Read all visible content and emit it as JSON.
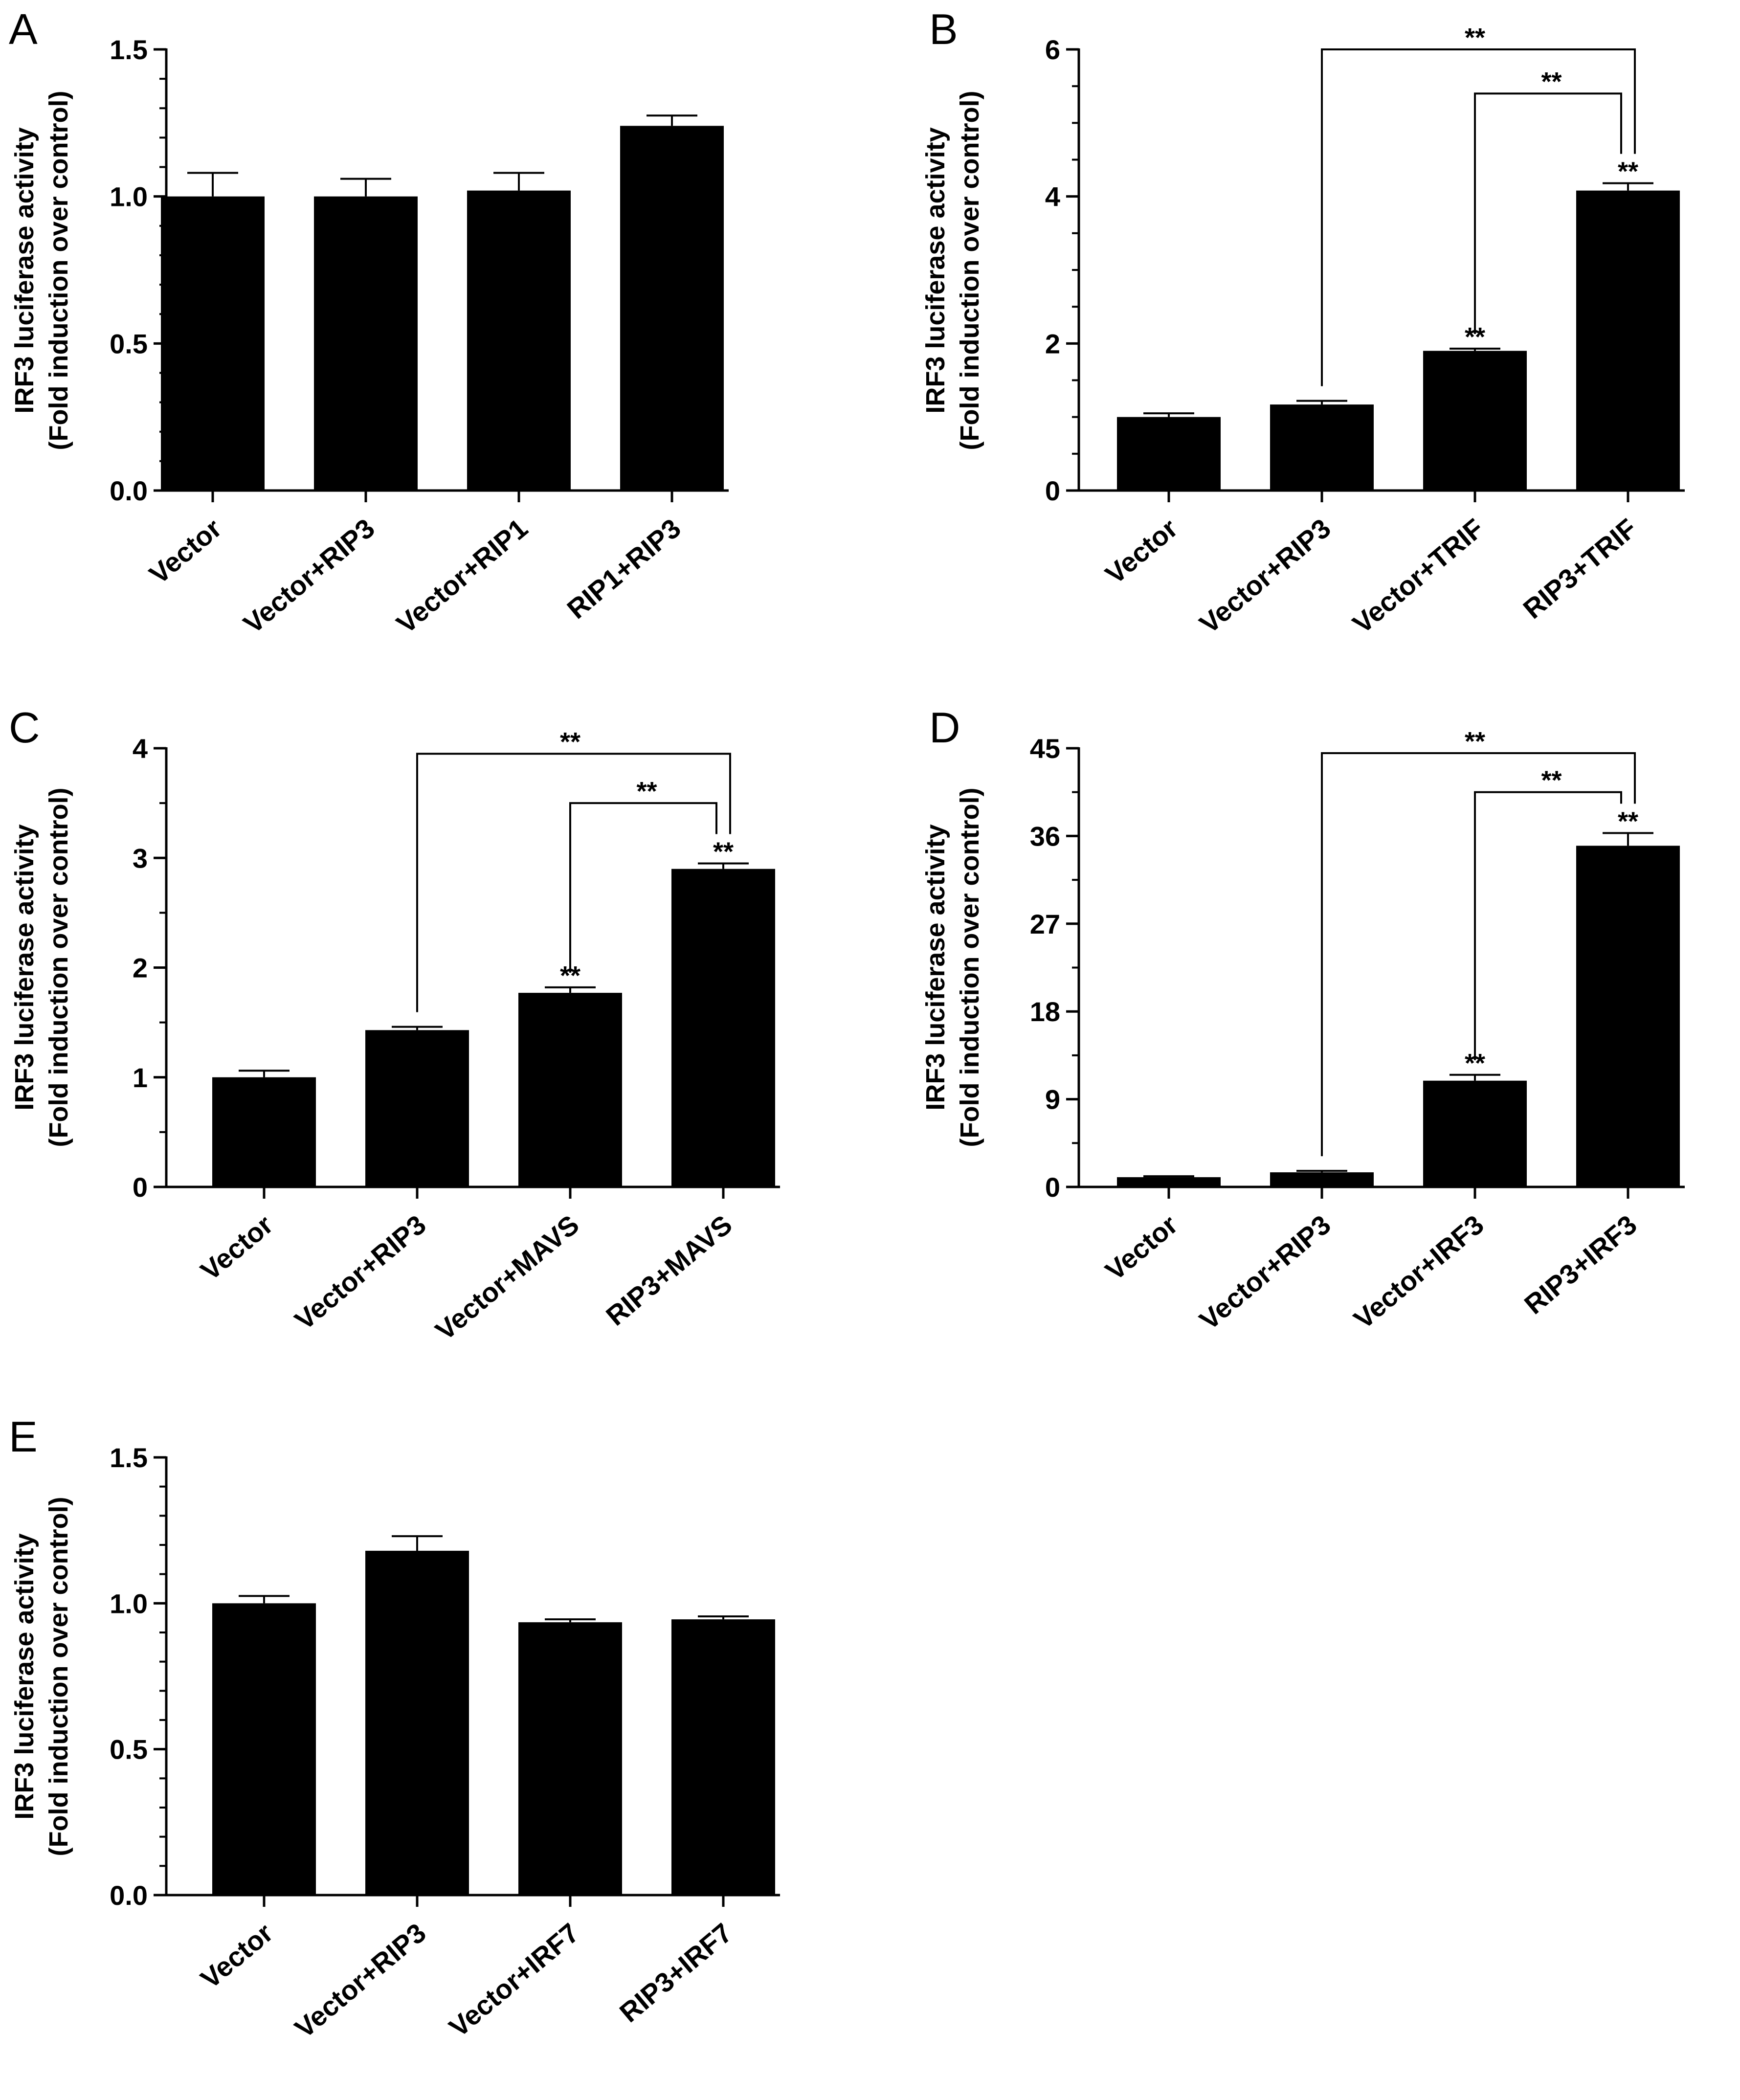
{
  "figure": {
    "background": "#ffffff",
    "bar_color": "#000000"
  },
  "chart_data": [
    {
      "panel": "A",
      "type": "bar",
      "ylabel": [
        "IRF3 luciferase activity",
        "(Fold induction over control)"
      ],
      "ylim": [
        0,
        1.5
      ],
      "yticks": [
        "0.0",
        "0.5",
        "1.0",
        "1.5"
      ],
      "ytick_values": [
        0,
        0.5,
        1.0,
        1.5
      ],
      "minor_tick_step": 0.1,
      "categories": [
        "Vector",
        "Vector+RIP3",
        "Vector+RIP1",
        "RIP1+RIP3"
      ],
      "values": [
        1.0,
        1.0,
        1.02,
        1.24
      ],
      "errors": [
        0.08,
        0.06,
        0.06,
        0.035
      ],
      "bar_stars": [
        "",
        "",
        "",
        ""
      ],
      "brackets": []
    },
    {
      "panel": "B",
      "type": "bar",
      "ylabel": [
        "IRF3 luciferase activity",
        "(Fold induction over control)"
      ],
      "ylim": [
        0,
        6
      ],
      "yticks": [
        "0",
        "2",
        "4",
        "6"
      ],
      "ytick_values": [
        0,
        2,
        4,
        6
      ],
      "minor_tick_step": 0.5,
      "categories": [
        "Vector",
        "Vector+RIP3",
        "Vector+TRIF",
        "RIP3+TRIF"
      ],
      "values": [
        1.0,
        1.17,
        1.9,
        4.08
      ],
      "errors": [
        0.05,
        0.05,
        0.03,
        0.1
      ],
      "bar_stars": [
        "",
        "",
        "**",
        "**"
      ],
      "brackets": [
        {
          "from": 1,
          "to": 3,
          "y": 6.0,
          "label": "**"
        },
        {
          "from": 2,
          "to": 3,
          "y": 5.4,
          "label": "**"
        }
      ]
    },
    {
      "panel": "C",
      "type": "bar",
      "ylabel": [
        "IRF3 luciferase activity",
        "(Fold induction over control)"
      ],
      "ylim": [
        0,
        4
      ],
      "yticks": [
        "0",
        "1",
        "2",
        "3",
        "4"
      ],
      "ytick_values": [
        0,
        1,
        2,
        3,
        4
      ],
      "minor_tick_step": 0.5,
      "categories": [
        "Vector",
        "Vector+RIP3",
        "Vector+MAVS",
        "RIP3+MAVS"
      ],
      "values": [
        1.0,
        1.43,
        1.77,
        2.9
      ],
      "errors": [
        0.06,
        0.03,
        0.05,
        0.05
      ],
      "bar_stars": [
        "",
        "",
        "**",
        "**"
      ],
      "brackets": [
        {
          "from": 1,
          "to": 3,
          "y": 3.95,
          "label": "**"
        },
        {
          "from": 2,
          "to": 3,
          "y": 3.5,
          "label": "**"
        }
      ]
    },
    {
      "panel": "D",
      "type": "bar",
      "ylabel": [
        "IRF3 luciferase activity",
        "(Fold induction over control)"
      ],
      "ylim": [
        0,
        45
      ],
      "yticks": [
        "0",
        "9",
        "18",
        "27",
        "36",
        "45"
      ],
      "ytick_values": [
        0,
        9,
        18,
        27,
        36,
        45
      ],
      "minor_tick_step": 4.5,
      "categories": [
        "Vector",
        "Vector+RIP3",
        "Vector+IRF3",
        "RIP3+IRF3"
      ],
      "values": [
        1.0,
        1.5,
        10.9,
        35.0
      ],
      "errors": [
        0.1,
        0.15,
        0.6,
        1.3
      ],
      "bar_stars": [
        "",
        "",
        "**",
        "**"
      ],
      "brackets": [
        {
          "from": 1,
          "to": 3,
          "y": 44.5,
          "label": "**"
        },
        {
          "from": 2,
          "to": 3,
          "y": 40.5,
          "label": "**"
        }
      ]
    },
    {
      "panel": "E",
      "type": "bar",
      "ylabel": [
        "IRF3 luciferase activity",
        "(Fold induction over control)"
      ],
      "ylim": [
        0,
        1.5
      ],
      "yticks": [
        "0.0",
        "0.5",
        "1.0",
        "1.5"
      ],
      "ytick_values": [
        0,
        0.5,
        1.0,
        1.5
      ],
      "minor_tick_step": 0.1,
      "categories": [
        "Vector",
        "Vector+RIP3",
        "Vector+IRF7",
        "RIP3+IRF7"
      ],
      "values": [
        1.0,
        1.18,
        0.935,
        0.945
      ],
      "errors": [
        0.025,
        0.05,
        0.01,
        0.01
      ],
      "bar_stars": [
        "",
        "",
        "",
        ""
      ],
      "brackets": []
    }
  ]
}
